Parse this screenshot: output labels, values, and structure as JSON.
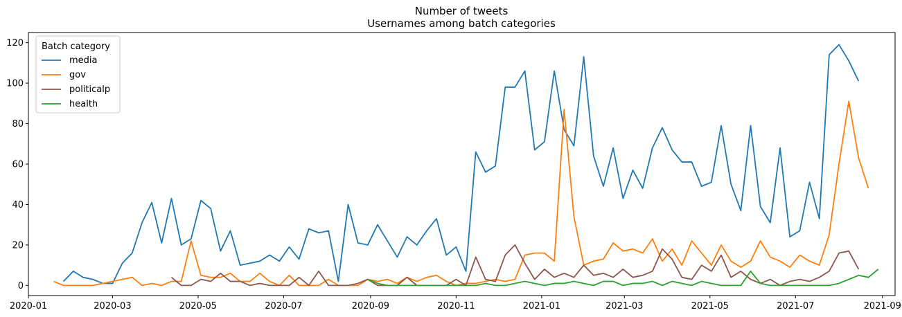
{
  "chart_data": {
    "type": "line",
    "title": "Number of tweets",
    "subtitle": "Usernames among batch categories",
    "xlabel": "",
    "ylabel": "",
    "xlim": [
      "2020-01-01",
      "2021-09-10"
    ],
    "ylim": [
      -5,
      125
    ],
    "x_ticks": [
      "2020-01",
      "2020-03",
      "2020-05",
      "2020-07",
      "2020-09",
      "2020-11",
      "2021-01",
      "2021-03",
      "2021-05",
      "2021-07",
      "2021-09"
    ],
    "y_ticks": [
      0,
      20,
      40,
      60,
      80,
      100,
      120
    ],
    "grid": false,
    "legend": {
      "title": "Batch category",
      "placement": "top-left"
    },
    "series": [
      {
        "name": "media",
        "color": "#1f77b4",
        "start": "2020-01-26",
        "step_days": 7,
        "values": [
          2,
          7,
          4,
          3,
          1,
          1,
          11,
          16,
          31,
          41,
          21,
          43,
          20,
          23,
          42,
          38,
          17,
          27,
          10,
          11,
          12,
          15,
          12,
          19,
          13,
          28,
          26,
          27,
          2,
          40,
          21,
          20,
          30,
          22,
          14,
          24,
          20,
          27,
          33,
          15,
          19,
          7,
          66,
          56,
          59,
          98,
          98,
          106,
          67,
          71,
          106,
          77,
          69,
          113,
          64,
          49,
          68,
          43,
          57,
          48,
          68,
          78,
          67,
          61,
          61,
          49,
          51,
          79,
          50,
          37,
          79,
          39,
          31,
          68,
          24,
          27,
          51,
          33,
          114,
          119,
          111,
          101
        ]
      },
      {
        "name": "gov",
        "color": "#ff7f0e",
        "start": "2020-01-19",
        "step_days": 7,
        "values": [
          2,
          0,
          0,
          0,
          0,
          1,
          2,
          3,
          4,
          0,
          1,
          0,
          2,
          2,
          22,
          5,
          4,
          4,
          6,
          2,
          2,
          6,
          2,
          0,
          5,
          0,
          0,
          0,
          3,
          0,
          0,
          0,
          3,
          2,
          3,
          1,
          4,
          2,
          4,
          5,
          2,
          0,
          1,
          1,
          2,
          3,
          2,
          3,
          15,
          16,
          16,
          12,
          87,
          34,
          10,
          12,
          13,
          21,
          17,
          18,
          16,
          23,
          12,
          18,
          10,
          22,
          16,
          10,
          20,
          12,
          9,
          12,
          22,
          14,
          12,
          9,
          15,
          12,
          10,
          25,
          60,
          91,
          63,
          48
        ]
      },
      {
        "name": "politicalp",
        "color": "#8c564b",
        "start": "2020-04-12",
        "step_days": 7,
        "values": [
          4,
          0,
          0,
          3,
          2,
          6,
          2,
          2,
          0,
          1,
          0,
          0,
          0,
          4,
          0,
          7,
          0,
          0,
          0,
          1,
          3,
          0,
          0,
          0,
          4,
          0,
          0,
          0,
          0,
          3,
          0,
          14,
          3,
          2,
          15,
          20,
          11,
          3,
          8,
          4,
          6,
          4,
          10,
          5,
          6,
          4,
          8,
          4,
          5,
          7,
          18,
          13,
          4,
          3,
          10,
          7,
          15,
          4,
          7,
          3,
          1,
          3,
          0,
          2,
          3,
          2,
          4,
          7,
          16,
          17,
          8
        ]
      },
      {
        "name": "health",
        "color": "#2ca02c",
        "start": "2020-08-30",
        "step_days": 7,
        "values": [
          3,
          1,
          0,
          0,
          0,
          0,
          0,
          0,
          0,
          0,
          0,
          0,
          1,
          0,
          0,
          1,
          2,
          1,
          0,
          1,
          1,
          2,
          1,
          0,
          2,
          2,
          0,
          1,
          1,
          2,
          0,
          2,
          1,
          0,
          2,
          1,
          0,
          0,
          0,
          7,
          1,
          0,
          0,
          0,
          0,
          0,
          0,
          0,
          1,
          3,
          5,
          4,
          8
        ]
      }
    ]
  }
}
